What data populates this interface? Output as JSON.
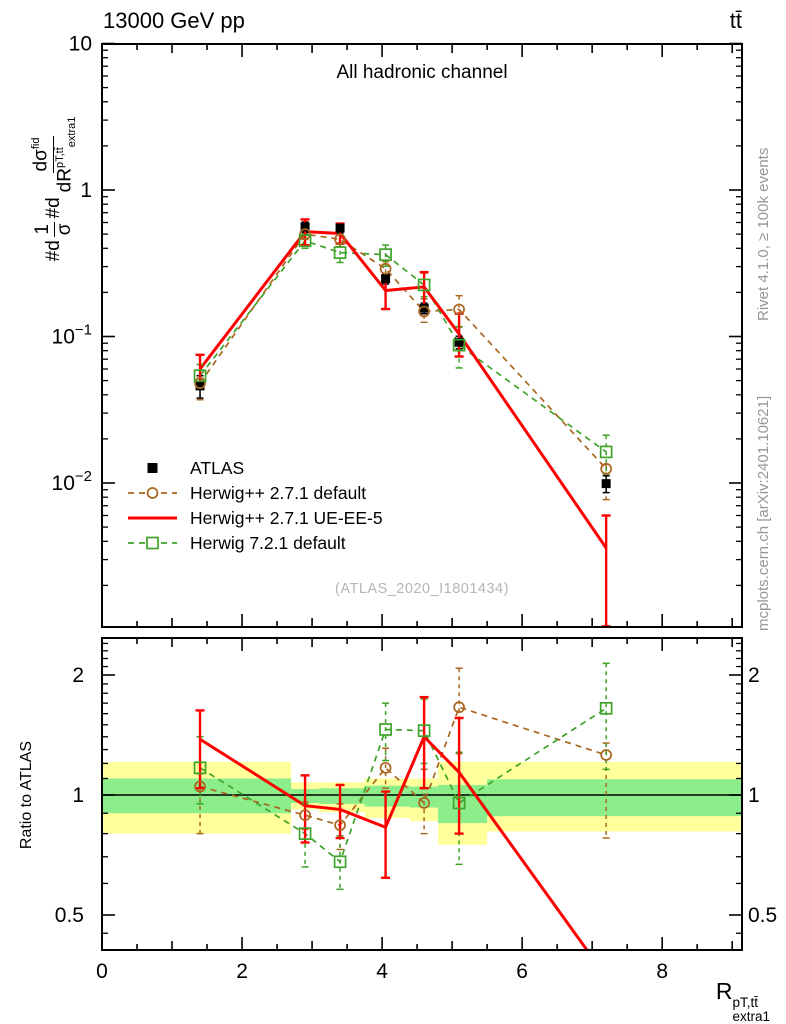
{
  "header": {
    "energy": "13000 GeV pp",
    "process": "tt̄"
  },
  "side": {
    "rivet": "Rivet 4.1.0, ≥ 100k events",
    "mcplots": "mcplots.cern.ch [arXiv:2401.10621]"
  },
  "watermark": "(ATLAS_2020_I1801434)",
  "ylabel_main": {
    "p1": "#d",
    "f1_num": "1",
    "f1_den": "σ",
    "p2": "#d",
    "f2_num_base": "dσ",
    "f2_num_sup": "fid",
    "f2_den_base": "dR",
    "f2_den_sup": "pT,tt̄",
    "f2_den_sub": "extra1"
  },
  "xtitle": {
    "base": "R",
    "sup": "pT,tt̄",
    "sub": "extra1"
  },
  "chart_data": {
    "type": "line",
    "title": "All hadronic channel",
    "xlabel": "R_extra1^{pT,ttbar}",
    "ylabel": "#d 1/sigma #d dsigma^fid / dR^{pT,ttbar}_extra1",
    "ratio_ylabel": "Ratio to ATLAS",
    "xlim": [
      0,
      9.14
    ],
    "x": [
      1.4,
      2.9,
      3.4,
      4.05,
      4.6,
      5.1,
      7.2
    ],
    "x_ticks": [
      {
        "v": 0,
        "t": "0"
      },
      {
        "v": 2,
        "t": "2"
      },
      {
        "v": 4,
        "t": "4"
      },
      {
        "v": 6,
        "t": "6"
      },
      {
        "v": 8,
        "t": "8"
      }
    ],
    "colors": {
      "atlas": "#000000",
      "herwigpp_default": "#a9661f",
      "herwigpp_ueee5": "#ff0000",
      "herwig7_default": "#3fa32a",
      "band_yellow": "#ffff9c",
      "band_green": "#8bee8b"
    },
    "main": {
      "ylog": true,
      "ylim": [
        0.00104,
        10.0
      ],
      "y_ticks": [
        {
          "v": 10,
          "t": "10"
        },
        {
          "v": 1,
          "t": "1"
        },
        {
          "v": 0.1,
          "t": "10^−1"
        },
        {
          "v": 0.01,
          "t": "10^−2"
        }
      ],
      "series": [
        {
          "name": "Herwig++ 2.7.1 default",
          "color": "#a9661f",
          "style": "dashed",
          "marker": "ocircle",
          "width": 1.7,
          "values": [
            0.048,
            0.5,
            0.46,
            0.29,
            0.148,
            0.153,
            0.0125
          ],
          "err_lo": [
            0.037,
            0.46,
            0.41,
            0.258,
            0.125,
            0.116,
            0.0077
          ],
          "err_hi": [
            0.052,
            0.54,
            0.5,
            0.325,
            0.181,
            0.19,
            0.0134
          ]
        },
        {
          "name": "Herwig 7.2.1 default",
          "color": "#3fa32a",
          "style": "dashed",
          "marker": "osquare",
          "width": 1.7,
          "values": [
            0.054,
            0.45,
            0.374,
            0.362,
            0.225,
            0.0873,
            0.0163
          ],
          "err_lo": [
            0.0437,
            0.4,
            0.32,
            0.302,
            0.187,
            0.061,
            0.0115
          ],
          "err_hi": [
            0.0644,
            0.5,
            0.435,
            0.421,
            0.271,
            0.117,
            0.0212
          ]
        },
        {
          "name": "ATLAS",
          "color": "#000000",
          "style": "none",
          "marker": "fsquare",
          "width": 1.6,
          "values": [
            0.046,
            0.56,
            0.55,
            0.248,
            0.156,
            0.0914,
            0.0099
          ],
          "err_lo": [
            0.038,
            0.515,
            0.51,
            0.228,
            0.143,
            0.0824,
            0.0086
          ],
          "err_hi": [
            0.054,
            0.605,
            0.59,
            0.268,
            0.169,
            0.1004,
            0.0112
          ]
        },
        {
          "name": "Herwig++ 2.7.1 UE-EE-5",
          "color": "#ff0000",
          "style": "solid",
          "marker": "none",
          "width": 3,
          "values": [
            0.06,
            0.52,
            0.505,
            0.206,
            0.218,
            0.104,
            0.0036
          ],
          "err_lo": [
            0.046,
            0.42,
            0.43,
            0.154,
            0.162,
            0.073,
            0.00105
          ],
          "err_hi": [
            0.075,
            0.63,
            0.59,
            0.26,
            0.275,
            0.143,
            0.006
          ]
        }
      ]
    },
    "ratio": {
      "ylog": true,
      "ylim": [
        0.408,
        2.48
      ],
      "y_ticks": [
        {
          "v": 2,
          "t": "2"
        },
        {
          "v": 1,
          "t": "1"
        },
        {
          "v": 0.5,
          "t": "0.5"
        }
      ],
      "bins": [
        {
          "x0": 0,
          "x1": 2.7,
          "yellow": [
            0.8,
            1.21
          ],
          "green": [
            0.9,
            1.1
          ]
        },
        {
          "x0": 2.7,
          "x1": 3.1,
          "yellow": [
            0.92,
            1.075
          ],
          "green": [
            0.955,
            1.035
          ]
        },
        {
          "x0": 3.1,
          "x1": 3.75,
          "yellow": [
            0.905,
            1.075
          ],
          "green": [
            0.95,
            1.04
          ]
        },
        {
          "x0": 3.75,
          "x1": 4.4,
          "yellow": [
            0.875,
            1.1
          ],
          "green": [
            0.935,
            1.055
          ]
        },
        {
          "x0": 4.4,
          "x1": 4.8,
          "yellow": [
            0.86,
            1.1
          ],
          "green": [
            0.93,
            1.05
          ]
        },
        {
          "x0": 4.8,
          "x1": 5.5,
          "yellow": [
            0.75,
            1.21
          ],
          "green": [
            0.85,
            1.06
          ]
        },
        {
          "x0": 5.5,
          "x1": 9.14,
          "yellow": [
            0.81,
            1.21
          ],
          "green": [
            0.885,
            1.095
          ]
        }
      ],
      "series": [
        {
          "name": "Herwig++ 2.7.1 default",
          "color": "#a9661f",
          "style": "dashed",
          "marker": "ocircle",
          "width": 1.7,
          "values": [
            1.05,
            0.89,
            0.84,
            1.17,
            0.955,
            1.66,
            1.26
          ],
          "err_lo": [
            0.8,
            0.82,
            0.73,
            1.04,
            0.8,
            1.27,
            0.78
          ],
          "err_hi": [
            1.13,
            0.96,
            0.95,
            1.31,
            1.16,
            2.08,
            1.35
          ]
        },
        {
          "name": "Herwig 7.2.1 default",
          "color": "#3fa32a",
          "style": "dashed",
          "marker": "osquare",
          "width": 1.7,
          "values": [
            1.17,
            0.8,
            0.68,
            1.46,
            1.45,
            0.955,
            1.65
          ],
          "err_lo": [
            0.95,
            0.66,
            0.58,
            1.22,
            1.2,
            0.67,
            1.16
          ],
          "err_hi": [
            1.4,
            0.95,
            0.79,
            1.7,
            1.74,
            1.28,
            2.14
          ]
        },
        {
          "name": "Herwig++ 2.7.1 UE-EE-5",
          "color": "#ff0000",
          "style": "solid",
          "marker": "none",
          "width": 3,
          "values": [
            1.38,
            0.94,
            0.92,
            0.83,
            1.4,
            1.14,
            0.35
          ],
          "err_lo": [
            1.04,
            0.76,
            0.78,
            0.62,
            1.04,
            0.8,
            null
          ],
          "err_hi": [
            1.63,
            1.12,
            1.06,
            1.02,
            1.76,
            1.56,
            null
          ]
        }
      ]
    },
    "legend": [
      {
        "label": "ATLAS",
        "color": "#000000",
        "marker": "fsquare",
        "line": "none"
      },
      {
        "label": "Herwig++ 2.7.1 default",
        "color": "#a9661f",
        "marker": "ocircle",
        "line": "dashed"
      },
      {
        "label": "Herwig++ 2.7.1 UE-EE-5",
        "color": "#ff0000",
        "marker": "none",
        "line": "solid"
      },
      {
        "label": "Herwig 7.2.1 default",
        "color": "#3fa32a",
        "marker": "osquare",
        "line": "dashed"
      }
    ]
  }
}
